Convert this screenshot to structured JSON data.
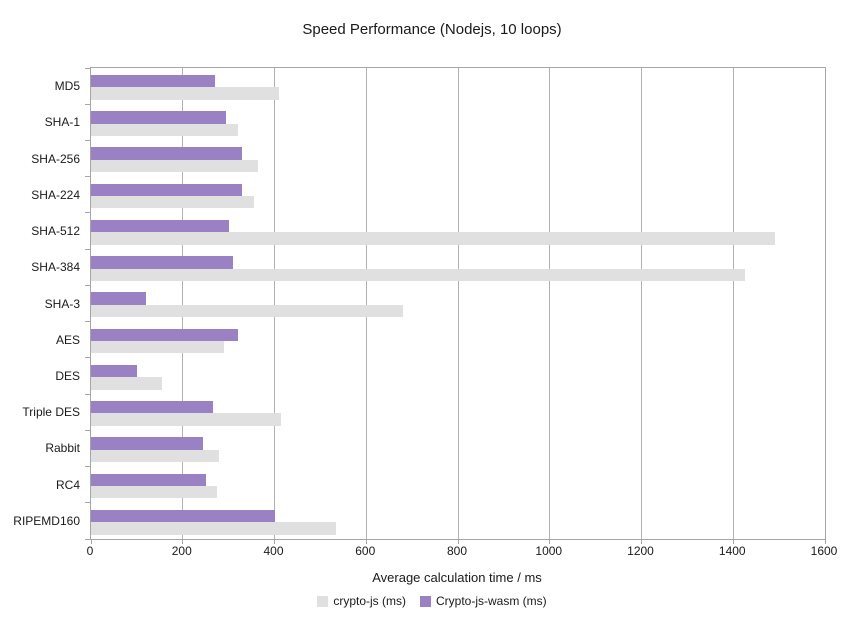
{
  "chart_data": {
    "type": "bar",
    "orientation": "horizontal",
    "title": "Speed Performance (Nodejs, 10 loops)",
    "xlabel": "Average calculation time / ms",
    "categories": [
      "MD5",
      "SHA-1",
      "SHA-256",
      "SHA-224",
      "SHA-512",
      "SHA-384",
      "SHA-3",
      "AES",
      "DES",
      "Triple DES",
      "Rabbit",
      "RC4",
      "RIPEMD160"
    ],
    "series": [
      {
        "name": "crypto-js (ms)",
        "color": "#e0e0e0",
        "values": [
          410,
          320,
          365,
          355,
          1490,
          1425,
          680,
          290,
          155,
          415,
          280,
          275,
          535
        ]
      },
      {
        "name": "Crypto-js-wasm (ms)",
        "color": "#9a81c4",
        "values": [
          270,
          295,
          330,
          330,
          300,
          310,
          120,
          320,
          100,
          265,
          245,
          250,
          400
        ]
      }
    ],
    "xlim": [
      0,
      1600
    ],
    "xticks": [
      0,
      200,
      400,
      600,
      800,
      1000,
      1200,
      1400,
      1600
    ],
    "grid": true,
    "legend_position": "bottom",
    "colors": {
      "grid": "#b1b1b1",
      "axis": "#a6a6a6",
      "text": "#1a1a1a"
    }
  }
}
